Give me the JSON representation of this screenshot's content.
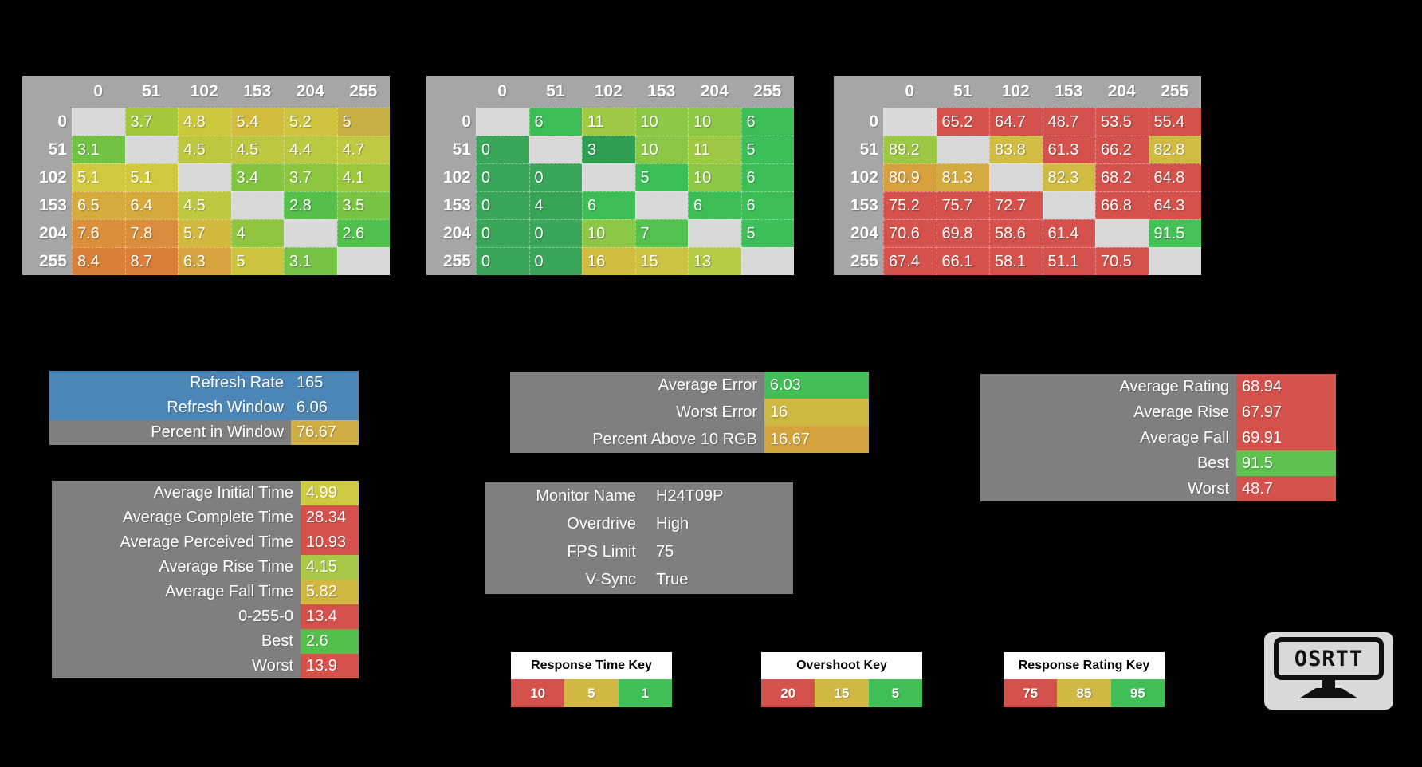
{
  "colors": {
    "background": "#000000",
    "table_bg": "#a6a6a6",
    "diagonal": "#d9d9d9",
    "panel_bg": "#7f7f7f",
    "blue": "#4c86b7",
    "red": "#d5524c",
    "gold": "#d0b843",
    "green": "#3fbf55"
  },
  "chart_data": [
    {
      "type": "heatmap",
      "id": "response-times",
      "x_categories": [
        "0",
        "51",
        "102",
        "153",
        "204",
        "255"
      ],
      "y_categories": [
        "0",
        "51",
        "102",
        "153",
        "204",
        "255"
      ],
      "cells": [
        [
          [
            null,
            "#d9d9d9"
          ],
          [
            3.7,
            "#a3c83e"
          ],
          [
            4.8,
            "#cbc83e"
          ],
          [
            5.4,
            "#d1bc3c"
          ],
          [
            5.2,
            "#cfc43d"
          ],
          [
            5,
            "#c9ae43"
          ]
        ],
        [
          [
            3.1,
            "#72c145"
          ],
          [
            null,
            "#d9d9d9"
          ],
          [
            4.5,
            "#bdc840"
          ],
          [
            4.5,
            "#bdc840"
          ],
          [
            4.4,
            "#b9c941"
          ],
          [
            4.7,
            "#c0c941"
          ]
        ],
        [
          [
            5.1,
            "#d0c83e"
          ],
          [
            5.1,
            "#d0c83e"
          ],
          [
            null,
            "#d9d9d9"
          ],
          [
            3.4,
            "#83c441"
          ],
          [
            3.7,
            "#8cc53f"
          ],
          [
            4.1,
            "#9cc83e"
          ]
        ],
        [
          [
            6.5,
            "#d6ab3d"
          ],
          [
            6.4,
            "#d6a93c"
          ],
          [
            4.5,
            "#bdc840"
          ],
          [
            null,
            "#d9d9d9"
          ],
          [
            2.8,
            "#55bf4a"
          ],
          [
            3.5,
            "#79c344"
          ]
        ],
        [
          [
            7.6,
            "#da8f3b"
          ],
          [
            7.8,
            "#da8d3a"
          ],
          [
            5.7,
            "#d2b93e"
          ],
          [
            4,
            "#90c541"
          ],
          [
            null,
            "#d9d9d9"
          ],
          [
            2.6,
            "#50bf4c"
          ]
        ],
        [
          [
            8.4,
            "#d98038"
          ],
          [
            8.7,
            "#d97d37"
          ],
          [
            6.3,
            "#d6a43c"
          ],
          [
            5,
            "#cdc53e"
          ],
          [
            3.1,
            "#75c244"
          ],
          [
            null,
            "#d9d9d9"
          ]
        ]
      ]
    },
    {
      "type": "heatmap",
      "id": "overshoot",
      "x_categories": [
        "0",
        "51",
        "102",
        "153",
        "204",
        "255"
      ],
      "y_categories": [
        "0",
        "51",
        "102",
        "153",
        "204",
        "255"
      ],
      "cells": [
        [
          [
            null,
            "#d9d9d9"
          ],
          [
            6,
            "#3dbd55"
          ],
          [
            11,
            "#a0c944"
          ],
          [
            10,
            "#8cc746"
          ],
          [
            10,
            "#8cc746"
          ],
          [
            6,
            "#3dbd55"
          ]
        ],
        [
          [
            0,
            "#3aa65a"
          ],
          [
            null,
            "#d9d9d9"
          ],
          [
            3,
            "#2f9e51"
          ],
          [
            10,
            "#8cc746"
          ],
          [
            11,
            "#a0c944"
          ],
          [
            5,
            "#3cbe58"
          ]
        ],
        [
          [
            0,
            "#3aa65a"
          ],
          [
            0,
            "#3aa65a"
          ],
          [
            null,
            "#d9d9d9"
          ],
          [
            5,
            "#3cbe58"
          ],
          [
            10,
            "#8cc746"
          ],
          [
            6,
            "#3dbd55"
          ]
        ],
        [
          [
            0,
            "#3aa65a"
          ],
          [
            4,
            "#37a455"
          ],
          [
            6,
            "#3dbd55"
          ],
          [
            null,
            "#d9d9d9"
          ],
          [
            6,
            "#3dbd55"
          ],
          [
            6,
            "#3dbd55"
          ]
        ],
        [
          [
            0,
            "#3aa65a"
          ],
          [
            0,
            "#3aa65a"
          ],
          [
            10,
            "#8cc746"
          ],
          [
            7,
            "#53c14e"
          ],
          [
            null,
            "#d9d9d9"
          ],
          [
            5,
            "#3cbe58"
          ]
        ],
        [
          [
            0,
            "#3aa65a"
          ],
          [
            0,
            "#3aa65a"
          ],
          [
            16,
            "#cfbc40"
          ],
          [
            15,
            "#ccc342"
          ],
          [
            13,
            "#b5cb43"
          ],
          [
            null,
            "#d9d9d9"
          ]
        ]
      ]
    },
    {
      "type": "heatmap",
      "id": "response-rating",
      "x_categories": [
        "0",
        "51",
        "102",
        "153",
        "204",
        "255"
      ],
      "y_categories": [
        "0",
        "51",
        "102",
        "153",
        "204",
        "255"
      ],
      "cells": [
        [
          [
            null,
            "#d9d9d9"
          ],
          [
            65.2,
            "#d5524c"
          ],
          [
            64.7,
            "#d5524c"
          ],
          [
            48.7,
            "#d5524c"
          ],
          [
            53.5,
            "#d5524c"
          ],
          [
            55.4,
            "#d5524c"
          ]
        ],
        [
          [
            89.2,
            "#9cc846"
          ],
          [
            null,
            "#d9d9d9"
          ],
          [
            83.8,
            "#d0bd41"
          ],
          [
            61.3,
            "#d5524c"
          ],
          [
            66.2,
            "#d5524c"
          ],
          [
            82.8,
            "#cfbb42"
          ]
        ],
        [
          [
            80.9,
            "#d6a03c"
          ],
          [
            81.3,
            "#d3ab3f"
          ],
          [
            null,
            "#d9d9d9"
          ],
          [
            82.3,
            "#cfba42"
          ],
          [
            68.2,
            "#d5524c"
          ],
          [
            64.8,
            "#d5524c"
          ]
        ],
        [
          [
            75.2,
            "#d5524c"
          ],
          [
            75.7,
            "#d5524c"
          ],
          [
            72.7,
            "#d5524c"
          ],
          [
            null,
            "#d9d9d9"
          ],
          [
            66.8,
            "#d5524c"
          ],
          [
            64.3,
            "#d5524c"
          ]
        ],
        [
          [
            70.6,
            "#d5524c"
          ],
          [
            69.8,
            "#d5524c"
          ],
          [
            58.6,
            "#d5524c"
          ],
          [
            61.4,
            "#d5524c"
          ],
          [
            null,
            "#d9d9d9"
          ],
          [
            91.5,
            "#43c056"
          ]
        ],
        [
          [
            67.4,
            "#d5524c"
          ],
          [
            66.1,
            "#d5524c"
          ],
          [
            58.1,
            "#d5524c"
          ],
          [
            51.1,
            "#d5524c"
          ],
          [
            70.5,
            "#d5524c"
          ],
          [
            null,
            "#d9d9d9"
          ]
        ]
      ]
    }
  ],
  "panels": {
    "refresh": {
      "rows": [
        {
          "label": "Refresh Rate",
          "value": "165",
          "label_bg": "#4c86b7",
          "value_bg": "#4c86b7"
        },
        {
          "label": "Refresh Window",
          "value": "6.06",
          "label_bg": "#4c86b7",
          "value_bg": "#4c86b7"
        },
        {
          "label": "Percent in Window",
          "value": "76.67",
          "label_bg": "#7f7f7f",
          "value_bg": "#d0ad41"
        }
      ]
    },
    "error": {
      "rows": [
        {
          "label": "Average Error",
          "value": "6.03",
          "label_bg": "#7f7f7f",
          "value_bg": "#43bf58"
        },
        {
          "label": "Worst Error",
          "value": "16",
          "label_bg": "#7f7f7f",
          "value_bg": "#cdb942"
        },
        {
          "label": "Percent Above 10 RGB",
          "value": "16.67",
          "label_bg": "#7f7f7f",
          "value_bg": "#d3a43e"
        }
      ]
    },
    "rating": {
      "rows": [
        {
          "label": "Average Rating",
          "value": "68.94",
          "label_bg": "#7f7f7f",
          "value_bg": "#d5524c"
        },
        {
          "label": "Average Rise",
          "value": "67.97",
          "label_bg": "#7f7f7f",
          "value_bg": "#d5524c"
        },
        {
          "label": "Average Fall",
          "value": "69.91",
          "label_bg": "#7f7f7f",
          "value_bg": "#d5524c"
        },
        {
          "label": "Best",
          "value": "91.5",
          "label_bg": "#7f7f7f",
          "value_bg": "#5dc24e"
        },
        {
          "label": "Worst",
          "value": "48.7",
          "label_bg": "#7f7f7f",
          "value_bg": "#d5524c"
        }
      ]
    },
    "time": {
      "rows": [
        {
          "label": "Average Initial Time",
          "value": "4.99",
          "label_bg": "#7f7f7f",
          "value_bg": "#cec943"
        },
        {
          "label": "Average Complete Time",
          "value": "28.34",
          "label_bg": "#7f7f7f",
          "value_bg": "#d5524c"
        },
        {
          "label": "Average Perceived Time",
          "value": "10.93",
          "label_bg": "#7f7f7f",
          "value_bg": "#d5524c"
        },
        {
          "label": "Average Rise Time",
          "value": "4.15",
          "label_bg": "#7f7f7f",
          "value_bg": "#a8c945"
        },
        {
          "label": "Average Fall Time",
          "value": "5.82",
          "label_bg": "#7f7f7f",
          "value_bg": "#d0b741"
        },
        {
          "label": "0-255-0",
          "value": "13.4",
          "label_bg": "#7f7f7f",
          "value_bg": "#d5524c"
        },
        {
          "label": "Best",
          "value": "2.6",
          "label_bg": "#7f7f7f",
          "value_bg": "#53c04b"
        },
        {
          "label": "Worst",
          "value": "13.9",
          "label_bg": "#7f7f7f",
          "value_bg": "#d5524c"
        }
      ]
    },
    "monitor": {
      "rows": [
        {
          "label": "Monitor Name",
          "value": "H24T09P"
        },
        {
          "label": "Overdrive",
          "value": "High"
        },
        {
          "label": "FPS Limit",
          "value": "75"
        },
        {
          "label": "V-Sync",
          "value": "True"
        }
      ]
    }
  },
  "keys": [
    {
      "title": "Response Time Key",
      "cells": [
        [
          "10",
          "#d5524c"
        ],
        [
          "5",
          "#d0b843"
        ],
        [
          "1",
          "#3fbf55"
        ]
      ]
    },
    {
      "title": "Overshoot Key",
      "cells": [
        [
          "20",
          "#d5524c"
        ],
        [
          "15",
          "#d0b843"
        ],
        [
          "5",
          "#3fbf55"
        ]
      ]
    },
    {
      "title": "Response Rating Key",
      "cells": [
        [
          "75",
          "#d5524c"
        ],
        [
          "85",
          "#d0b843"
        ],
        [
          "95",
          "#3fbf55"
        ]
      ]
    }
  ],
  "logo": {
    "text": "OSRTT"
  }
}
